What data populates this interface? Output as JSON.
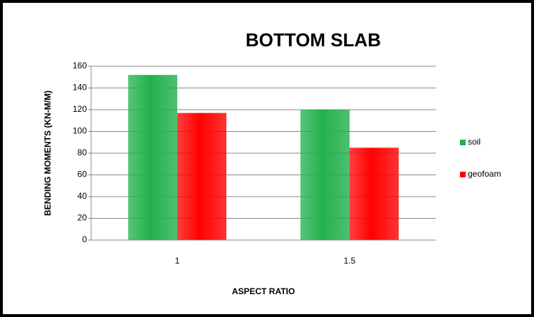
{
  "chart_data": {
    "type": "bar",
    "title": "BOTTOM SLAB",
    "x_label": "ASPECT RATIO",
    "y_label": "BENDING MOMENTS  (KN-M/M)",
    "categories": [
      "1",
      "1.5"
    ],
    "series": [
      {
        "name": "soil",
        "color": "#22b14c",
        "values": [
          152,
          120
        ]
      },
      {
        "name": "geofoam",
        "color": "#ff0000",
        "values": [
          117,
          85
        ]
      }
    ],
    "ylim": [
      0,
      160
    ],
    "yticks": [
      0,
      20,
      40,
      60,
      80,
      100,
      120,
      140,
      160
    ],
    "grid": true,
    "legend": "right"
  }
}
